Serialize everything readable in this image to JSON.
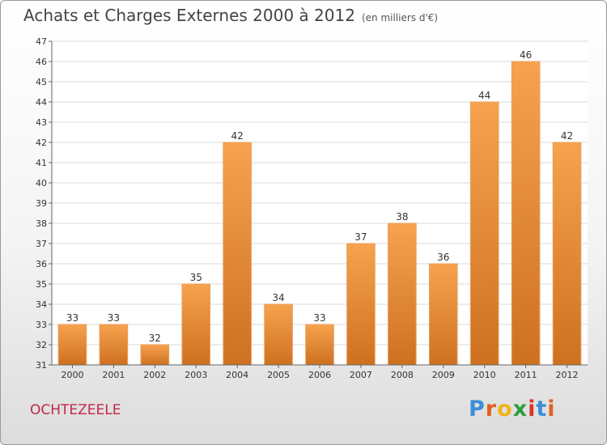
{
  "header": {
    "title": "Achats et Charges Externes 2000 à 2012",
    "subtitle": "(en milliers d'€)"
  },
  "footer": {
    "town": "OCHTEZEELE",
    "logo_letters": [
      "P",
      "r",
      "o",
      "x",
      "i",
      "t",
      "i"
    ],
    "logo_colors": [
      "#3a8fd6",
      "#e06020",
      "#f2b31a",
      "#2d9e3c",
      "#d8362a",
      "#3a8fd6",
      "#e06020"
    ]
  },
  "chart_data": {
    "type": "bar",
    "title": "Achats et Charges Externes 2000 à 2012",
    "subtitle": "(en milliers d'€)",
    "categories": [
      "2000",
      "2001",
      "2002",
      "2003",
      "2004",
      "2005",
      "2006",
      "2007",
      "2008",
      "2009",
      "2010",
      "2011",
      "2012"
    ],
    "values": [
      33,
      33,
      32,
      35,
      42,
      34,
      33,
      37,
      38,
      36,
      44,
      46,
      42
    ],
    "ylim": [
      31,
      47
    ],
    "yticks": [
      "31",
      "32",
      "33",
      "34",
      "35",
      "36",
      "37",
      "38",
      "39",
      "40",
      "41",
      "42",
      "43",
      "44",
      "45",
      "46",
      "47"
    ],
    "grid": true,
    "bar_color_top": "#f7a24e",
    "bar_color_bottom": "#cd7120"
  }
}
